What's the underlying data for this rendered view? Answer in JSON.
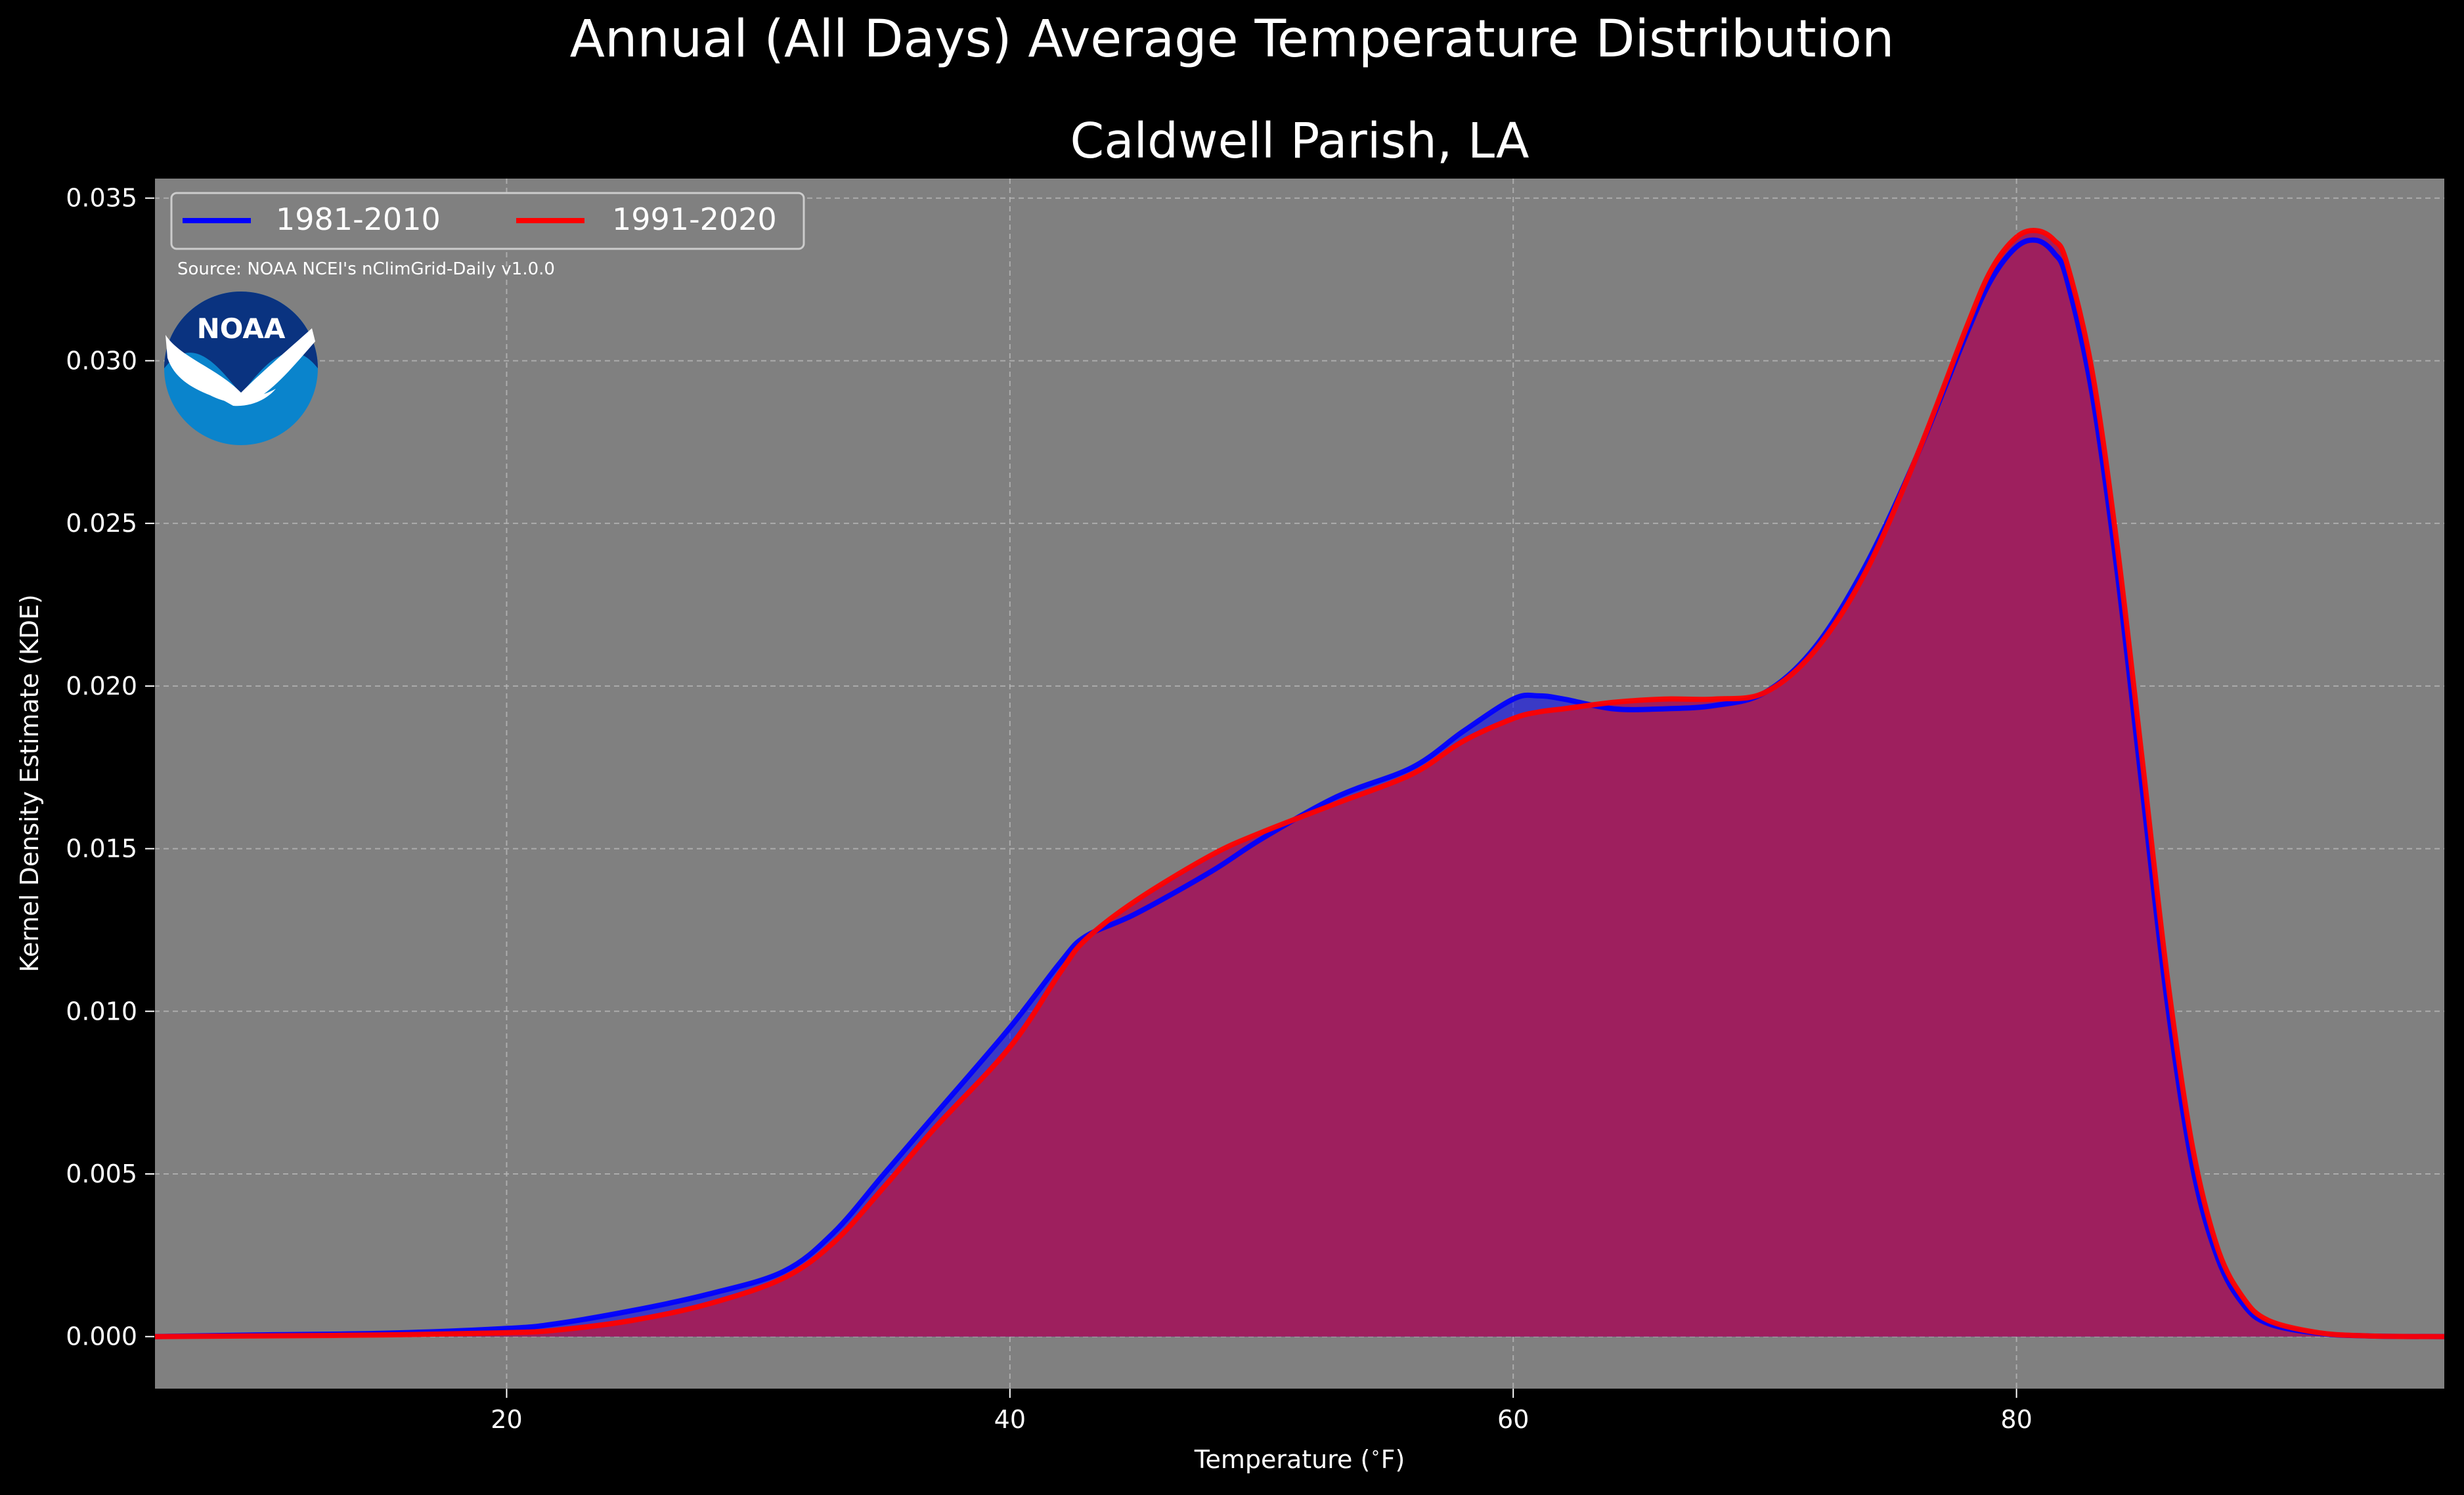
{
  "figure": {
    "suptitle": "Annual (All Days) Average Temperature Distribution",
    "title": "Caldwell Parish, LA",
    "source_note": "Source: NOAA NCEI's nClimGrid-Daily v1.0.0",
    "logo_text": "NOAA"
  },
  "colors": {
    "background": "#000000",
    "plot_bg": "#808080",
    "text": "#ffffff",
    "series_1981": "#0000ff",
    "series_1991": "#ff0000",
    "fill_overlap": "#9e1f5e",
    "logo_dark": "#0a3380",
    "logo_light": "#0a84cc"
  },
  "chart_data": {
    "type": "area",
    "title": "Caldwell Parish, LA",
    "xlabel": "Temperature ($^\\circ$F)",
    "ylabel": "Kernel Density Estimate (KDE)",
    "xlim": [
      6,
      97
    ],
    "ylim": [
      -0.0016,
      0.0356
    ],
    "xticks": [
      20,
      40,
      60,
      80
    ],
    "xtick_labels": [
      "20",
      "40",
      "60",
      "80"
    ],
    "yticks": [
      0.0,
      0.005,
      0.01,
      0.015,
      0.02,
      0.025,
      0.03,
      0.035
    ],
    "ytick_labels": [
      "0.000",
      "0.005",
      "0.010",
      "0.015",
      "0.020",
      "0.025",
      "0.030",
      "0.035"
    ],
    "grid": true,
    "legend_position": "top-left",
    "series": [
      {
        "name": "1981-2010",
        "x": [
          6,
          10,
          15,
          20,
          22,
          25,
          28,
          31,
          33,
          35,
          37,
          40,
          42,
          43,
          45,
          48,
          50,
          53,
          56,
          58,
          60,
          61,
          62,
          64,
          66,
          68,
          70,
          72,
          74,
          76,
          78,
          79,
          80,
          80.8,
          81.5,
          82,
          83,
          84,
          85,
          86,
          87,
          88,
          89,
          90,
          92,
          94,
          97
        ],
        "y": [
          0.0,
          5e-05,
          0.0001,
          0.00025,
          0.0004,
          0.0008,
          0.0013,
          0.002,
          0.0032,
          0.005,
          0.0068,
          0.0095,
          0.0115,
          0.0123,
          0.013,
          0.0143,
          0.0153,
          0.0166,
          0.0175,
          0.0186,
          0.0196,
          0.0197,
          0.0196,
          0.0193,
          0.0193,
          0.0194,
          0.0198,
          0.0212,
          0.0237,
          0.027,
          0.0308,
          0.0325,
          0.0335,
          0.0337,
          0.0333,
          0.0325,
          0.029,
          0.0235,
          0.0168,
          0.0102,
          0.0052,
          0.0024,
          0.001,
          0.0004,
          0.0001,
          2e-05,
          0.0
        ]
      },
      {
        "name": "1991-2020",
        "x": [
          6,
          10,
          15,
          20,
          22,
          25,
          28,
          31,
          33,
          35,
          37,
          40,
          42,
          43,
          45,
          48,
          50,
          53,
          56,
          58,
          60,
          61,
          62,
          64,
          66,
          68,
          70,
          72,
          74,
          76,
          78,
          79,
          80,
          80.8,
          81.5,
          82,
          83,
          84,
          85,
          86,
          87,
          88,
          89,
          90,
          92,
          94,
          97
        ],
        "y": [
          0.0,
          2e-05,
          5e-05,
          0.00012,
          0.0002,
          0.0005,
          0.001,
          0.0018,
          0.0029,
          0.0046,
          0.0064,
          0.0089,
          0.0112,
          0.0122,
          0.0134,
          0.0148,
          0.0155,
          0.0164,
          0.0173,
          0.0183,
          0.019,
          0.0192,
          0.0193,
          0.0195,
          0.0196,
          0.0196,
          0.0198,
          0.0211,
          0.0235,
          0.027,
          0.031,
          0.0328,
          0.0338,
          0.034,
          0.0337,
          0.033,
          0.0297,
          0.0243,
          0.0177,
          0.011,
          0.0058,
          0.0027,
          0.0012,
          0.0005,
          0.00012,
          2e-05,
          0.0
        ]
      }
    ]
  }
}
